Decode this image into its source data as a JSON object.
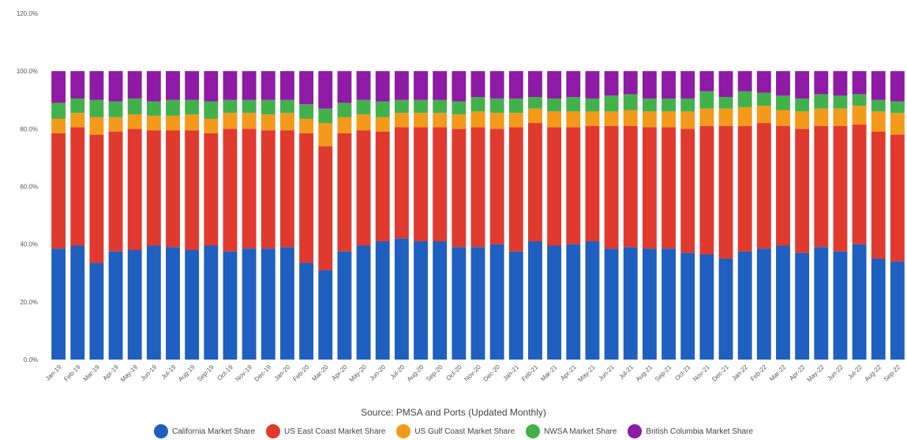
{
  "chart_data": {
    "type": "bar",
    "stacked": true,
    "source_note": "Source: PMSA and Ports (Updated Monthly)",
    "ylim": [
      0,
      120
    ],
    "y_ticks": [
      "0.0%",
      "20.0%",
      "40.0%",
      "60.0%",
      "80.0%",
      "100.0%",
      "120.0%"
    ],
    "grid": false,
    "legend_position": "bottom",
    "categories": [
      "Jan-19",
      "Feb-19",
      "Mar-19",
      "Apr-19",
      "May-19",
      "Jun-19",
      "Jul-19",
      "Aug-19",
      "Sep-19",
      "Oct-19",
      "Nov-19",
      "Dec-19",
      "Jan-20",
      "Feb-20",
      "Mar-20",
      "Apr-20",
      "May-20",
      "Jun-20",
      "Jul-20",
      "Aug-20",
      "Sep-20",
      "Oct-20",
      "Nov-20",
      "Dec-20",
      "Jan-21",
      "Feb-21",
      "Mar-21",
      "Apr-21",
      "May-21",
      "Jun-21",
      "Jul-21",
      "Aug-21",
      "Sep-21",
      "Oct-21",
      "Nov-21",
      "Dec-21",
      "Jan-22",
      "Feb-22",
      "Mar-22",
      "Apr-22",
      "May-22",
      "Jun-22",
      "Jul-22",
      "Aug-22",
      "Sep-22"
    ],
    "series": [
      {
        "name": "California Market Share",
        "color": "#1f5fbf",
        "values": [
          38.5,
          39.5,
          33.5,
          37.5,
          38.0,
          39.5,
          39.0,
          38.0,
          39.5,
          37.5,
          38.5,
          38.5,
          39.0,
          33.5,
          31.0,
          37.5,
          39.5,
          41.0,
          42.0,
          41.0,
          41.0,
          39.0,
          39.0,
          40.0,
          37.5,
          41.0,
          39.5,
          40.0,
          41.0,
          38.5,
          39.0,
          38.5,
          38.5,
          37.0,
          36.5,
          35.0,
          37.5,
          38.5,
          39.5,
          37.0,
          39.0,
          37.5,
          40.0,
          35.0,
          34.0
        ]
      },
      {
        "name": "US East Coast Market Share",
        "color": "#e03a2f",
        "values": [
          40.0,
          41.0,
          44.5,
          41.5,
          42.0,
          40.0,
          40.5,
          41.5,
          39.0,
          42.5,
          41.5,
          41.0,
          40.5,
          45.0,
          43.0,
          41.0,
          40.0,
          38.0,
          38.5,
          39.5,
          39.5,
          41.0,
          41.5,
          40.0,
          43.0,
          41.0,
          41.0,
          40.5,
          40.0,
          42.5,
          42.0,
          42.0,
          42.0,
          43.0,
          44.5,
          46.0,
          43.5,
          43.5,
          41.5,
          43.0,
          42.0,
          43.5,
          41.5,
          44.0,
          44.0
        ]
      },
      {
        "name": "US Gulf Coast Market Share",
        "color": "#f39a1b",
        "values": [
          5.0,
          5.0,
          6.0,
          5.0,
          5.0,
          5.0,
          5.0,
          5.5,
          5.0,
          5.5,
          5.5,
          5.5,
          6.0,
          5.0,
          8.0,
          5.5,
          5.5,
          5.0,
          5.0,
          5.0,
          5.0,
          5.0,
          5.5,
          5.5,
          5.0,
          5.0,
          5.5,
          5.5,
          5.0,
          5.0,
          5.5,
          5.5,
          5.5,
          6.0,
          6.0,
          6.0,
          6.5,
          6.0,
          5.5,
          6.0,
          6.0,
          6.0,
          6.5,
          7.0,
          7.5
        ]
      },
      {
        "name": "NWSA Market Share",
        "color": "#43b14b",
        "values": [
          5.5,
          5.0,
          6.0,
          5.5,
          5.5,
          5.0,
          5.5,
          5.0,
          6.0,
          4.5,
          4.5,
          5.0,
          4.5,
          5.0,
          5.0,
          5.0,
          5.0,
          5.5,
          4.5,
          4.5,
          4.5,
          4.5,
          5.0,
          5.0,
          5.0,
          4.0,
          4.5,
          5.0,
          4.5,
          5.5,
          5.5,
          4.5,
          4.5,
          4.5,
          6.0,
          4.0,
          5.5,
          4.5,
          5.0,
          4.5,
          5.0,
          4.5,
          4.0,
          4.0,
          4.0
        ]
      },
      {
        "name": "British Columbia Market Share",
        "color": "#8e1aa6",
        "values": [
          11.0,
          9.5,
          10.0,
          10.5,
          9.5,
          10.5,
          10.0,
          10.0,
          10.5,
          10.0,
          10.0,
          10.0,
          10.0,
          11.5,
          13.0,
          11.0,
          10.0,
          10.5,
          10.0,
          10.0,
          10.0,
          10.5,
          9.0,
          9.5,
          9.5,
          9.0,
          9.5,
          9.0,
          9.5,
          8.5,
          8.0,
          9.5,
          9.5,
          9.5,
          7.0,
          9.0,
          7.0,
          7.5,
          8.5,
          9.5,
          8.0,
          8.5,
          8.0,
          10.0,
          10.5
        ]
      }
    ]
  }
}
